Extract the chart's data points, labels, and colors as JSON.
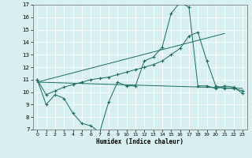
{
  "xlabel": "Humidex (Indice chaleur)",
  "bg_color": "#d8f0f0",
  "line_color": "#1a6b60",
  "grid_color": "#ffffff",
  "xlim": [
    -0.5,
    23.5
  ],
  "ylim": [
    7,
    17
  ],
  "xticks": [
    0,
    1,
    2,
    3,
    4,
    5,
    6,
    7,
    8,
    9,
    10,
    11,
    12,
    13,
    14,
    15,
    16,
    17,
    18,
    19,
    20,
    21,
    22,
    23
  ],
  "yticks": [
    7,
    8,
    9,
    10,
    11,
    12,
    13,
    14,
    15,
    16,
    17
  ],
  "line1_x": [
    0,
    1,
    2,
    3,
    4,
    5,
    6,
    7,
    8,
    9,
    10,
    11,
    12,
    13,
    14,
    15,
    16,
    17,
    18,
    19,
    20,
    21,
    22,
    23
  ],
  "line1_y": [
    11,
    9,
    9.8,
    9.5,
    8.3,
    7.5,
    7.3,
    6.8,
    9.2,
    10.8,
    10.5,
    10.5,
    12.5,
    12.8,
    13.6,
    16.3,
    17.2,
    16.8,
    10.5,
    10.5,
    10.3,
    10.5,
    10.4,
    9.9
  ],
  "line2_x": [
    0,
    1,
    2,
    3,
    4,
    5,
    6,
    7,
    8,
    9,
    10,
    11,
    12,
    13,
    14,
    15,
    16,
    17,
    18,
    19,
    20,
    21,
    22,
    23
  ],
  "line2_y": [
    11,
    9.8,
    10.1,
    10.4,
    10.6,
    10.8,
    11.0,
    11.1,
    11.2,
    11.4,
    11.6,
    11.8,
    12.0,
    12.2,
    12.5,
    13.0,
    13.5,
    14.5,
    14.8,
    12.5,
    10.5,
    10.3,
    10.3,
    10.1
  ],
  "line3_x": [
    0,
    23
  ],
  "line3_y": [
    10.8,
    10.3
  ],
  "line4_x": [
    0,
    21
  ],
  "line4_y": [
    10.8,
    14.7
  ]
}
